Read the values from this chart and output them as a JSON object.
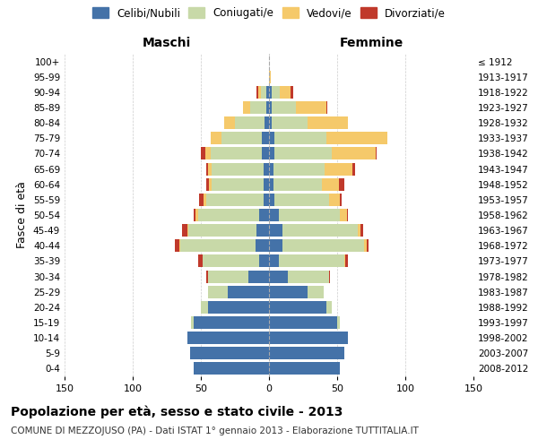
{
  "age_groups": [
    "0-4",
    "5-9",
    "10-14",
    "15-19",
    "20-24",
    "25-29",
    "30-34",
    "35-39",
    "40-44",
    "45-49",
    "50-54",
    "55-59",
    "60-64",
    "65-69",
    "70-74",
    "75-79",
    "80-84",
    "85-89",
    "90-94",
    "95-99",
    "100+"
  ],
  "birth_years": [
    "2008-2012",
    "2003-2007",
    "1998-2002",
    "1993-1997",
    "1988-1992",
    "1983-1987",
    "1978-1982",
    "1973-1977",
    "1968-1972",
    "1963-1967",
    "1958-1962",
    "1953-1957",
    "1948-1952",
    "1943-1947",
    "1938-1942",
    "1933-1937",
    "1928-1932",
    "1923-1927",
    "1918-1922",
    "1913-1917",
    "≤ 1912"
  ],
  "males": {
    "celibe": [
      55,
      58,
      60,
      55,
      45,
      30,
      15,
      7,
      10,
      9,
      7,
      4,
      4,
      4,
      5,
      5,
      3,
      2,
      2,
      0,
      0
    ],
    "coniugato": [
      0,
      0,
      0,
      2,
      5,
      15,
      30,
      42,
      55,
      50,
      45,
      42,
      38,
      38,
      38,
      30,
      22,
      12,
      4,
      0,
      0
    ],
    "vedovo": [
      0,
      0,
      0,
      0,
      0,
      0,
      0,
      0,
      1,
      1,
      2,
      2,
      2,
      3,
      4,
      8,
      8,
      5,
      2,
      0,
      0
    ],
    "divorziato": [
      0,
      0,
      0,
      0,
      0,
      0,
      1,
      3,
      3,
      4,
      1,
      3,
      2,
      1,
      3,
      0,
      0,
      0,
      1,
      0,
      0
    ]
  },
  "females": {
    "nubile": [
      52,
      55,
      58,
      50,
      42,
      28,
      14,
      7,
      10,
      10,
      7,
      4,
      3,
      3,
      4,
      4,
      2,
      2,
      2,
      0,
      0
    ],
    "coniugata": [
      0,
      0,
      0,
      2,
      4,
      12,
      30,
      48,
      60,
      55,
      45,
      40,
      36,
      38,
      42,
      38,
      26,
      18,
      6,
      0,
      0
    ],
    "vedova": [
      0,
      0,
      0,
      0,
      0,
      0,
      0,
      1,
      2,
      2,
      5,
      8,
      12,
      20,
      32,
      45,
      30,
      22,
      8,
      1,
      0
    ],
    "divorziata": [
      0,
      0,
      0,
      0,
      0,
      0,
      1,
      2,
      1,
      2,
      1,
      1,
      4,
      2,
      1,
      0,
      0,
      1,
      2,
      0,
      0
    ]
  },
  "colors": {
    "celibe": "#4472a8",
    "coniugato": "#c8d9a8",
    "vedovo": "#f5c96a",
    "divorziato": "#c0392b"
  },
  "title": "Popolazione per età, sesso e stato civile - 2013",
  "subtitle": "COMUNE DI MEZZOJUSO (PA) - Dati ISTAT 1° gennaio 2013 - Elaborazione TUTTITALIA.IT",
  "xlabel_left": "Maschi",
  "xlabel_right": "Femmine",
  "ylabel_left": "Fasce di età",
  "legend_labels": [
    "Celibi/Nubili",
    "Coniugati/e",
    "Vedovi/e",
    "Divorziati/e"
  ],
  "xlim": 150,
  "bg_color": "#ffffff",
  "grid_color": "#cccccc"
}
